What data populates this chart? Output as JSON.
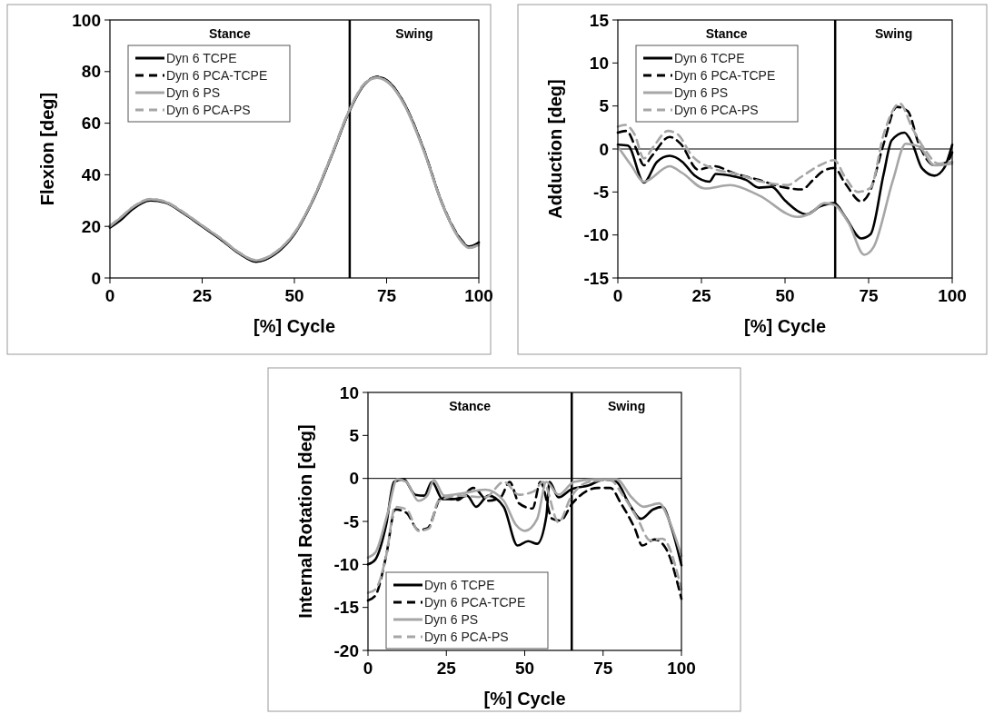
{
  "chart_data": [
    {
      "type": "line",
      "xlabel": "[%] Cycle",
      "ylabel": "Flexion [deg]",
      "xlim": [
        0,
        100
      ],
      "ylim": [
        0,
        100
      ],
      "xticks": [
        0,
        25,
        50,
        75,
        100
      ],
      "yticks": [
        0,
        20,
        40,
        60,
        80,
        100
      ],
      "legend": "top left",
      "ref_lines": [
        {
          "axis": "x",
          "value": 65,
          "color": "#000000"
        }
      ],
      "annotations": [
        "Stance",
        "Swing"
      ],
      "series": [
        {
          "name": "Dyn 6 TCPE",
          "color": "#000000",
          "line_style": "solid",
          "x": [
            0,
            3,
            6,
            11,
            15,
            20,
            25,
            30,
            35,
            39.6,
            45,
            50,
            55,
            60,
            65,
            69,
            72.4,
            76,
            80,
            85,
            90,
            95,
            97.4,
            100
          ],
          "values": [
            19.5,
            22.5,
            26.5,
            30,
            29.2,
            25,
            20,
            15,
            9.5,
            6.3,
            9.5,
            17,
            30,
            47,
            65,
            75,
            77.9,
            75.5,
            67,
            50,
            29,
            15,
            12,
            13.8
          ]
        },
        {
          "name": "Dyn 6 PCA-TCPE",
          "color": "#000000",
          "line_style": "dashed",
          "x": [
            0,
            3,
            6,
            11,
            15,
            20,
            25,
            30,
            35,
            39.6,
            45,
            50,
            55,
            60,
            65,
            69,
            72.4,
            76,
            80,
            85,
            90,
            95,
            97.4,
            100
          ],
          "values": [
            20,
            23,
            27,
            30.2,
            29.4,
            25.2,
            20.2,
            15.2,
            9.6,
            6.5,
            9.7,
            17.2,
            30.2,
            47.2,
            65.2,
            75.2,
            78,
            75.4,
            67,
            50,
            29.2,
            15.2,
            12.2,
            13.6
          ]
        },
        {
          "name": "Dyn 6 PS",
          "color": "#a6a6a6",
          "line_style": "solid",
          "x": [
            0,
            3,
            6,
            11,
            15,
            20,
            25,
            30,
            35,
            39.6,
            45,
            50,
            55,
            60,
            65,
            69,
            72.4,
            76,
            80,
            85,
            90,
            95,
            97.4,
            100
          ],
          "values": [
            20,
            23.5,
            27.2,
            30.5,
            29.5,
            25.3,
            20.3,
            15.3,
            9.8,
            6.8,
            10,
            17.4,
            30.3,
            47.3,
            65.3,
            75.2,
            77.6,
            75,
            66.6,
            49.6,
            29,
            14.6,
            11.6,
            12.8
          ]
        },
        {
          "name": "Dyn 6 PCA-PS",
          "color": "#a6a6a6",
          "line_style": "dashed",
          "x": [
            0,
            3,
            6,
            11,
            15,
            20,
            25,
            30,
            35,
            39.6,
            45,
            50,
            55,
            60,
            65,
            69,
            72.4,
            76,
            80,
            85,
            90,
            95,
            97.4,
            100
          ],
          "values": [
            20.2,
            23.6,
            27.3,
            30.6,
            29.6,
            25.4,
            20.4,
            15.4,
            9.9,
            6.9,
            10.1,
            17.5,
            30.4,
            47.4,
            65.4,
            75.3,
            77.7,
            75.1,
            66.7,
            49.7,
            29.1,
            14.7,
            11.7,
            12.9
          ]
        }
      ]
    },
    {
      "type": "line",
      "xlabel": "[%] Cycle",
      "ylabel": "Adduction [deg]",
      "xlim": [
        0,
        100
      ],
      "ylim": [
        -15,
        15
      ],
      "xticks": [
        0,
        25,
        50,
        75,
        100
      ],
      "yticks": [
        -15,
        -10,
        -5,
        0,
        5,
        10,
        15
      ],
      "legend": "top left",
      "ref_lines": [
        {
          "axis": "x",
          "value": 65,
          "color": "#000000"
        },
        {
          "axis": "y",
          "value": 0,
          "color": "#000000"
        }
      ],
      "annotations": [
        "Stance",
        "Swing"
      ],
      "series": [
        {
          "name": "Dyn 6 TCPE",
          "color": "#000000",
          "line_style": "solid",
          "x": [
            0,
            3,
            7.8,
            11.7,
            15.5,
            19.3,
            23,
            27.4,
            29.3,
            33.6,
            38.4,
            42.2,
            46,
            50,
            56.5,
            60.4,
            64.7,
            68,
            72.8,
            75.6,
            79.5,
            81.9,
            85.7,
            88.1,
            90.9,
            94.7,
            97.6,
            100
          ],
          "values": [
            0.5,
            0.4,
            -3.9,
            -1.5,
            -0.8,
            -1.5,
            -3.1,
            -3.8,
            -2.9,
            -3.1,
            -3.6,
            -4.5,
            -4.4,
            -6,
            -7.6,
            -6.7,
            -6.3,
            -7.9,
            -10.4,
            -9.9,
            -2.9,
            1,
            1.9,
            0.6,
            -2.2,
            -3.1,
            -2.2,
            0.5
          ]
        },
        {
          "name": "Dyn 6 PCA-TCPE",
          "color": "#000000",
          "line_style": "dashed",
          "x": [
            0,
            2.6,
            5.4,
            7.8,
            10.2,
            15.5,
            18.8,
            24,
            28.8,
            34.6,
            42.2,
            48.9,
            55.1,
            58.4,
            61.3,
            64.7,
            68,
            72.8,
            75.2,
            79.5,
            83.4,
            86.7,
            90,
            94.7,
            98.5,
            100
          ],
          "values": [
            1.9,
            2.1,
            0.1,
            -1.9,
            -0.8,
            1.4,
            0.6,
            -2.4,
            -2,
            -2.8,
            -3.6,
            -4.4,
            -4.7,
            -3.6,
            -2.6,
            -2.2,
            -4,
            -6.1,
            -5.1,
            0.6,
            4.9,
            4.4,
            0.6,
            -1.9,
            -1.5,
            -0.4
          ]
        },
        {
          "name": "Dyn 6 PS",
          "color": "#a6a6a6",
          "line_style": "solid",
          "x": [
            0,
            4,
            7.8,
            15.5,
            19.3,
            26,
            33.6,
            42.2,
            53.7,
            57.5,
            61.8,
            64.7,
            69,
            73.7,
            76.5,
            82.3,
            86.1,
            90,
            94.7,
            100
          ],
          "values": [
            0.3,
            -1.9,
            -3.8,
            -2,
            -2.8,
            -4.6,
            -4.2,
            -5.4,
            -7.9,
            -7.5,
            -6.3,
            -6.5,
            -8.6,
            -12.3,
            -11.4,
            -3.6,
            0.6,
            0.3,
            -1.9,
            -1.7
          ]
        },
        {
          "name": "Dyn 6 PCA-PS",
          "color": "#a6a6a6",
          "line_style": "dashed",
          "x": [
            0,
            2.1,
            5,
            7.8,
            10.7,
            15,
            17.9,
            22.2,
            27.9,
            35.5,
            43.1,
            50.8,
            54.6,
            60.4,
            64.7,
            68,
            71.8,
            75.6,
            79.5,
            84.3,
            88.1,
            91.9,
            95.8,
            100
          ],
          "values": [
            2.6,
            2.8,
            1.7,
            -1.1,
            0.3,
            2.1,
            1.7,
            -0.8,
            -2.2,
            -2.9,
            -3.8,
            -4.2,
            -3.3,
            -1.9,
            -1.3,
            -3.3,
            -5,
            -4.5,
            1.7,
            5.3,
            2.4,
            -0.1,
            -1.7,
            -1.5
          ]
        }
      ]
    },
    {
      "type": "line",
      "xlabel": "[%] Cycle",
      "ylabel": "Internal Rotation [deg]",
      "xlim": [
        0,
        100
      ],
      "ylim": [
        -20,
        10
      ],
      "xticks": [
        0,
        25,
        50,
        75,
        100
      ],
      "yticks": [
        -20,
        -15,
        -10,
        -5,
        0,
        5,
        10
      ],
      "legend": "bottom left",
      "ref_lines": [
        {
          "axis": "x",
          "value": 65,
          "color": "#000000"
        },
        {
          "axis": "y",
          "value": 0,
          "color": "#000000"
        }
      ],
      "annotations": [
        "Stance",
        "Swing"
      ],
      "series": [
        {
          "name": "Dyn 6 TCPE",
          "color": "#000000",
          "line_style": "solid",
          "x": [
            0,
            2.4,
            5.8,
            8.3,
            11.4,
            15.1,
            18,
            20.4,
            23.8,
            27.7,
            31.6,
            34.5,
            38.4,
            43.3,
            47.7,
            51.1,
            54,
            56.9,
            57.9,
            60.8,
            64.7,
            70.5,
            75.4,
            79.3,
            83.2,
            87.1,
            91,
            93.9,
            96.8,
            100
          ],
          "values": [
            -10,
            -9.4,
            -5.4,
            -0.4,
            -0.1,
            -1.9,
            -2,
            -0.4,
            -2.4,
            -2.4,
            -2,
            -3.3,
            -2,
            -3.3,
            -7.8,
            -7.3,
            -7.6,
            -4.4,
            -0.4,
            -2.2,
            -1.3,
            -0.8,
            -0.1,
            -0.4,
            -2.9,
            -4.7,
            -3.6,
            -3.3,
            -5.7,
            -10.1
          ]
        },
        {
          "name": "Dyn 6 PCA-TCPE",
          "color": "#000000",
          "line_style": "dashed",
          "x": [
            0,
            2.4,
            5.8,
            8.7,
            12.3,
            16.1,
            19,
            23.5,
            28.7,
            33.6,
            38.4,
            42.3,
            45.2,
            48.2,
            52.5,
            55,
            58.8,
            61.3,
            65.2,
            69.6,
            73.4,
            77.3,
            80.7,
            85.1,
            87.5,
            91.4,
            94.8,
            100
          ],
          "values": [
            -14.2,
            -13.6,
            -9,
            -3.6,
            -4,
            -6,
            -5.8,
            -2.2,
            -2.5,
            -1.1,
            -2.6,
            -2.2,
            -0.4,
            -2.9,
            -3.5,
            -0.4,
            -4.7,
            -4.9,
            -2.9,
            -1.5,
            -1.1,
            -1.1,
            -2.9,
            -5.8,
            -7.8,
            -7.1,
            -8,
            -14
          ]
        },
        {
          "name": "Dyn 6 PS",
          "color": "#a6a6a6",
          "line_style": "solid",
          "x": [
            0,
            2.4,
            6.3,
            9.3,
            12.2,
            16.1,
            18.9,
            21,
            24.3,
            30.6,
            37.4,
            43.3,
            47.2,
            50.1,
            54,
            56.9,
            60.8,
            65.7,
            72.4,
            79.3,
            84.1,
            88,
            92.9,
            96.3,
            100
          ],
          "values": [
            -9.2,
            -8.6,
            -4,
            -0.1,
            -0.4,
            -2.6,
            -2,
            -0.2,
            -2,
            -1.7,
            -1.3,
            -2.6,
            -5.4,
            -6.1,
            -4.7,
            -0.4,
            -1.9,
            -0.4,
            -0.1,
            -0.1,
            -2.2,
            -3.3,
            -2.9,
            -5.1,
            -9
          ]
        },
        {
          "name": "Dyn 6 PCA-PS",
          "color": "#a6a6a6",
          "line_style": "dashed",
          "x": [
            0,
            2.4,
            5.8,
            8.7,
            12.3,
            16.1,
            19.5,
            22.4,
            28.7,
            37.4,
            43.3,
            48.2,
            52.9,
            55.9,
            60.8,
            64.7,
            70.5,
            77.3,
            81.2,
            86,
            90,
            93.9,
            100
          ],
          "values": [
            -13.3,
            -12.9,
            -9,
            -3.3,
            -3.6,
            -6.1,
            -5.8,
            -2.7,
            -2,
            -2.2,
            -0.4,
            -1.9,
            -1.5,
            -0.4,
            -5.1,
            -2.2,
            -0.4,
            -0.2,
            -1.9,
            -4.7,
            -7.2,
            -7,
            -12.9
          ]
        }
      ]
    }
  ]
}
